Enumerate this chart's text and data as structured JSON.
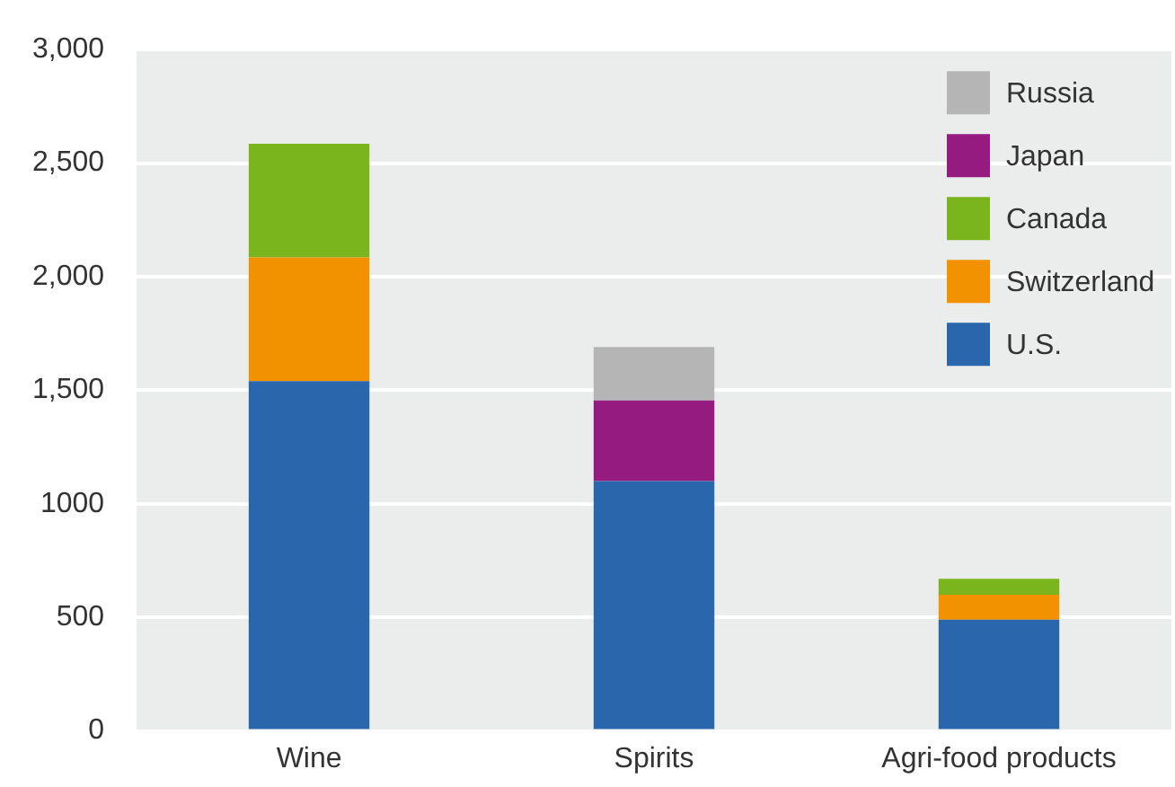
{
  "chart_data": {
    "type": "bar",
    "stacked": true,
    "categories": [
      "Wine",
      "Spirits",
      "Agri-food products"
    ],
    "series": [
      {
        "name": "U.S.",
        "color": "#2a66ab",
        "values": [
          1540,
          1100,
          490
        ]
      },
      {
        "name": "Switzerland",
        "color": "#f39200",
        "values": [
          545,
          null,
          110
        ]
      },
      {
        "name": "Canada",
        "color": "#7ab51d",
        "values": [
          500,
          null,
          70
        ]
      },
      {
        "name": "Japan",
        "color": "#951b81",
        "values": [
          null,
          355,
          null
        ]
      },
      {
        "name": "Russia",
        "color": "#b5b5b5",
        "values": [
          null,
          235,
          null
        ]
      }
    ],
    "ylim": [
      0,
      3000
    ],
    "yticks": [
      0,
      500,
      1000,
      {
        "value": 1500,
        "label": "1,500"
      },
      {
        "value": 2000,
        "label": "2,000"
      },
      {
        "value": 2500,
        "label": "2,500"
      },
      {
        "value": 3000,
        "label": "3,000"
      }
    ],
    "grid": "y",
    "legend": "top right"
  }
}
